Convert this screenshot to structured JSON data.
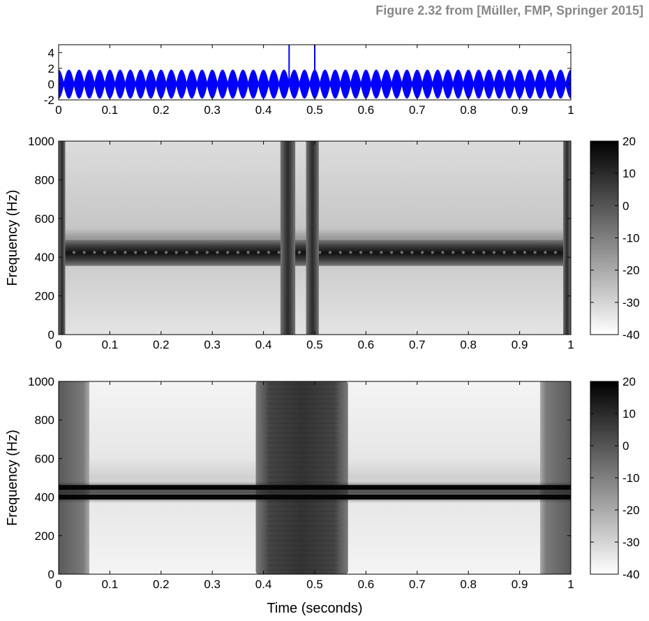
{
  "caption": "Figure 2.32 from [Müller, FMP, Springer 2015]",
  "chart_data": [
    {
      "type": "line",
      "panel": "waveform",
      "xlim": [
        0,
        1
      ],
      "ylim": [
        -2,
        5
      ],
      "xticks": [
        "0",
        "0.1",
        "0.2",
        "0.3",
        "0.4",
        "0.5",
        "0.6",
        "0.7",
        "0.8",
        "0.9",
        "1"
      ],
      "yticks": [
        "4",
        "2",
        "0",
        "-2"
      ],
      "color": "#0000ff",
      "signal": {
        "carrier_hz": 425,
        "beat_hz": 50,
        "amplitude_range": [
          -1.8,
          1.8
        ]
      },
      "impulses": [
        {
          "x": 0.45,
          "y": 5
        },
        {
          "x": 0.5,
          "y": 5
        }
      ]
    },
    {
      "type": "heatmap",
      "panel": "spectrogram-short-window",
      "xlim": [
        0,
        1
      ],
      "ylim": [
        0,
        1000
      ],
      "ylabel": "Frequency (Hz)",
      "xticks": [
        "0",
        "0.1",
        "0.2",
        "0.3",
        "0.4",
        "0.5",
        "0.6",
        "0.7",
        "0.8",
        "0.9",
        "1"
      ],
      "yticks": [
        "1000",
        "800",
        "600",
        "400",
        "200",
        "0"
      ],
      "colorbar": {
        "range": [
          -40,
          20
        ],
        "ticks": [
          "20",
          "10",
          "0",
          "-10",
          "-20",
          "-30",
          "-40"
        ],
        "colormap": "gray-inverted"
      },
      "features": {
        "horizontal_band_hz": [
          355,
          490
        ],
        "band_center_hz": 425,
        "vertical_lines_s": [
          [
            0.433,
            0.462
          ],
          [
            0.483,
            0.508
          ]
        ],
        "edge_lines_s": [
          [
            0.0,
            0.013
          ],
          [
            0.985,
            1.0
          ]
        ]
      }
    },
    {
      "type": "heatmap",
      "panel": "spectrogram-long-window",
      "xlim": [
        0,
        1
      ],
      "ylim": [
        0,
        1000
      ],
      "xlabel": "Time (seconds)",
      "ylabel": "Frequency (Hz)",
      "xticks": [
        "0",
        "0.1",
        "0.2",
        "0.3",
        "0.4",
        "0.5",
        "0.6",
        "0.7",
        "0.8",
        "0.9",
        "1"
      ],
      "yticks": [
        "1000",
        "800",
        "600",
        "400",
        "200",
        "0"
      ],
      "colorbar": {
        "range": [
          -40,
          20
        ],
        "ticks": [
          "20",
          "10",
          "0",
          "-10",
          "-20",
          "-30",
          "-40"
        ],
        "colormap": "gray-inverted"
      },
      "features": {
        "spectral_lines_hz": [
          400,
          450
        ],
        "dark_region_s": [
          0.385,
          0.565
        ],
        "edge_regions_s": [
          [
            0.0,
            0.06
          ],
          [
            0.94,
            1.0
          ]
        ]
      }
    }
  ]
}
